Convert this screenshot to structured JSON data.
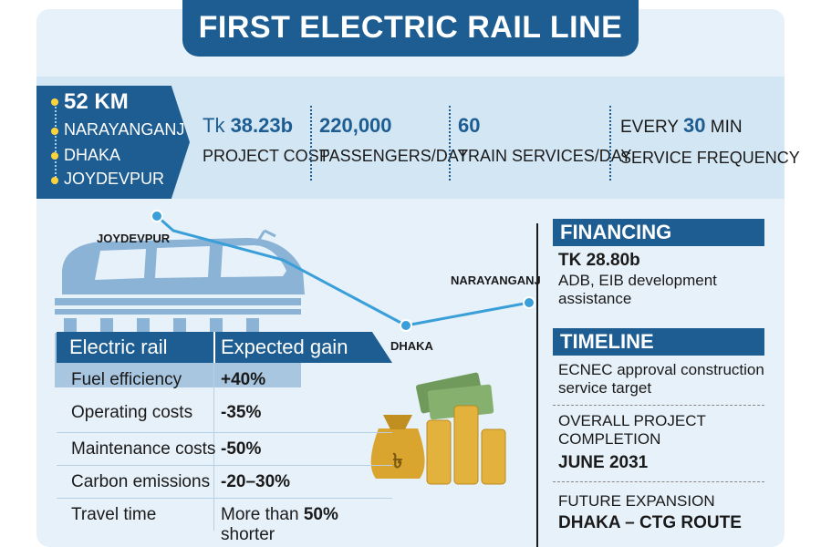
{
  "title": "FIRST ELECTRIC RAIL LINE",
  "route": {
    "length": "52 KM",
    "stops": [
      "NARAYANGANJ",
      "DHAKA",
      "JOYDEVPUR"
    ]
  },
  "stats": [
    {
      "prefix": "Tk ",
      "value": "38.23b",
      "suffix": "",
      "label": "PROJECT COST"
    },
    {
      "prefix": "",
      "value": "220,000",
      "suffix": "",
      "label": "PASSENGERS/DAY"
    },
    {
      "prefix": "",
      "value": "60",
      "suffix": "",
      "label": "TRAIN SERVICES/DAY"
    },
    {
      "prefix": "EVERY ",
      "value": "30",
      "suffix": " MIN",
      "label": "SERVICE FREQUENCY"
    }
  ],
  "map": {
    "cities": [
      "JOYDEVPUR",
      "DHAKA",
      "NARAYANGANJ"
    ]
  },
  "table": {
    "headers": [
      "Electric rail",
      "Expected gain"
    ],
    "rows": [
      {
        "item": "Fuel efficiency",
        "gain": "+40%"
      },
      {
        "item": "Operating costs",
        "gain": "-35%"
      },
      {
        "item": "Maintenance costs",
        "gain": "-50%"
      },
      {
        "item": "Carbon emissions",
        "gain": "-20–30%"
      },
      {
        "item": "Travel time",
        "gain_prefix": "More than ",
        "gain_bold": "50%",
        "gain_suffix": " shorter"
      }
    ]
  },
  "financing": {
    "heading": "FINANCING",
    "amount": "TK 28.80b",
    "detail": "ADB, EIB development assistance"
  },
  "timeline": {
    "heading": "TIMELINE",
    "items": [
      {
        "label": "ECNEC approval construction service target",
        "value": ""
      },
      {
        "label": "OVERALL PROJECT COMPLETION",
        "value": "JUNE 2031"
      },
      {
        "label": "FUTURE EXPANSION",
        "value": "DHAKA – CTG ROUTE"
      }
    ]
  },
  "colors": {
    "primary": "#1d5d92",
    "panel": "#e7f1f9",
    "band": "#d3e6f4",
    "route_line": "#3a9fd8",
    "train": "#8bb3d6",
    "gold": "#e3b23c"
  },
  "icons": [
    "train-icon",
    "money-bag-icon",
    "coin-stack-icon",
    "banknote-icon"
  ]
}
